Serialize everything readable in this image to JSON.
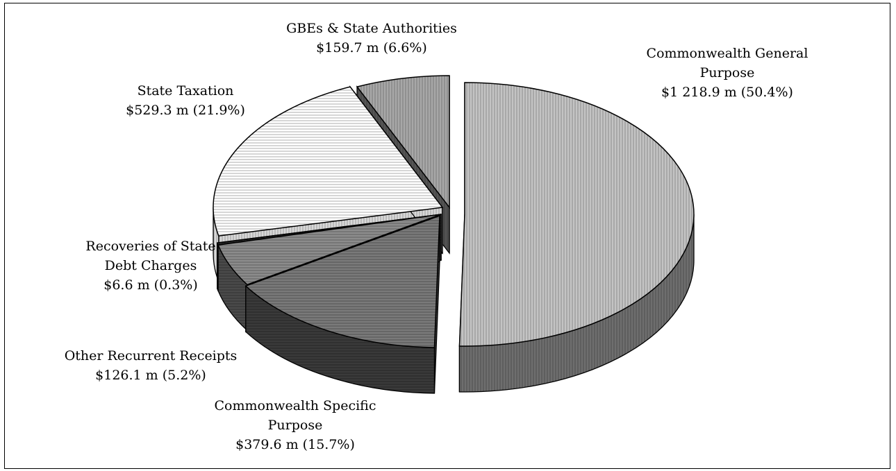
{
  "chart_data": {
    "type": "pie",
    "title": "",
    "slices": [
      {
        "key": "cgp",
        "label": "Commonwealth General Purpose",
        "value": 1218.9,
        "percent": 50.4,
        "value_text": "$1 218.9 m (50.4%)",
        "label_lines": [
          "Commonwealth General",
          "Purpose"
        ],
        "color": "#c4c4c4"
      },
      {
        "key": "csp",
        "label": "Commonwealth Specific Purpose",
        "value": 379.6,
        "percent": 15.7,
        "value_text": "$379.6 m (15.7%)",
        "label_lines": [
          "Commonwealth Specific",
          "Purpose"
        ],
        "color": "#7a7a7a"
      },
      {
        "key": "orr",
        "label": "Other Recurrent Receipts",
        "value": 126.1,
        "percent": 5.2,
        "value_text": "$126.1 m (5.2%)",
        "label_lines": [
          "Other Recurrent Receipts"
        ],
        "color": "#8c8c8c"
      },
      {
        "key": "rsdc",
        "label": "Recoveries of State Debt Charges",
        "value": 6.6,
        "percent": 0.3,
        "value_text": "$6.6 m (0.3%)",
        "label_lines": [
          "Recoveries of State",
          "Debt Charges"
        ],
        "color": "#2a2a2a"
      },
      {
        "key": "st",
        "label": "State Taxation",
        "value": 529.3,
        "percent": 21.9,
        "value_text": "$529.3 m (21.9%)",
        "label_lines": [
          "State Taxation"
        ],
        "color": "#ffffff"
      },
      {
        "key": "gbe",
        "label": "GBEs & State Authorities",
        "value": 159.7,
        "percent": 6.6,
        "value_text": "$159.7 m (6.6%)",
        "label_lines": [
          "GBEs & State Authorities"
        ],
        "color": "#a8a8a8"
      }
    ],
    "legend": "none",
    "style": "3d-exploded-pie"
  }
}
